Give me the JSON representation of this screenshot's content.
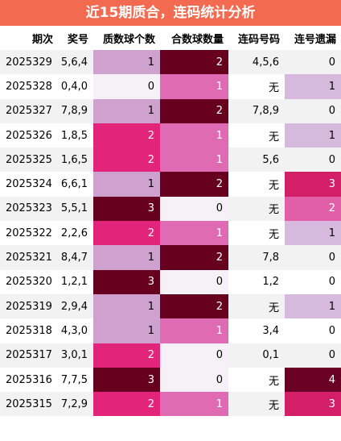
{
  "title": "近15期质合，连码统计分析",
  "headers": [
    "期次",
    "奖号",
    "质数球个数",
    "合数球数量",
    "连码号码",
    "连号遗漏"
  ],
  "rows": [
    {
      "issue": "2025329",
      "nums": "5,6,4",
      "prime": "1",
      "composite": "2",
      "consec": "4,5,6",
      "miss": "0"
    },
    {
      "issue": "2025328",
      "nums": "0,4,0",
      "prime": "0",
      "composite": "1",
      "consec": "无",
      "miss": "1"
    },
    {
      "issue": "2025327",
      "nums": "7,8,9",
      "prime": "1",
      "composite": "2",
      "consec": "7,8,9",
      "miss": "0"
    },
    {
      "issue": "2025326",
      "nums": "1,8,5",
      "prime": "2",
      "composite": "1",
      "consec": "无",
      "miss": "1"
    },
    {
      "issue": "2025325",
      "nums": "1,6,5",
      "prime": "2",
      "composite": "1",
      "consec": "5,6",
      "miss": "0"
    },
    {
      "issue": "2025324",
      "nums": "6,6,1",
      "prime": "1",
      "composite": "2",
      "consec": "无",
      "miss": "3"
    },
    {
      "issue": "2025323",
      "nums": "5,5,1",
      "prime": "3",
      "composite": "0",
      "consec": "无",
      "miss": "2"
    },
    {
      "issue": "2025322",
      "nums": "2,2,6",
      "prime": "2",
      "composite": "1",
      "consec": "无",
      "miss": "1"
    },
    {
      "issue": "2025321",
      "nums": "8,4,7",
      "prime": "1",
      "composite": "2",
      "consec": "7,8",
      "miss": "0"
    },
    {
      "issue": "2025320",
      "nums": "1,2,1",
      "prime": "3",
      "composite": "0",
      "consec": "1,2",
      "miss": "0"
    },
    {
      "issue": "2025319",
      "nums": "2,9,4",
      "prime": "1",
      "composite": "2",
      "consec": "无",
      "miss": "1"
    },
    {
      "issue": "2025318",
      "nums": "4,3,0",
      "prime": "1",
      "composite": "1",
      "consec": "3,4",
      "miss": "0"
    },
    {
      "issue": "2025317",
      "nums": "3,0,1",
      "prime": "2",
      "composite": "0",
      "consec": "0,1",
      "miss": "0"
    },
    {
      "issue": "2025316",
      "nums": "7,7,5",
      "prime": "3",
      "composite": "0",
      "consec": "无",
      "miss": "4"
    },
    {
      "issue": "2025315",
      "nums": "7,2,9",
      "prime": "2",
      "composite": "1",
      "consec": "无",
      "miss": "3"
    }
  ],
  "colors": {
    "title_bg": "#f26a4f",
    "prime": {
      "0": "#f5f1f6",
      "1": "#cfa1cf",
      "2": "#e2247a",
      "3": "#67001f"
    },
    "composite": {
      "0": "#f5f1f6",
      "1": "#df6bb4",
      "2": "#67001f"
    },
    "miss": {
      "1": "#d6b9dc",
      "2": "#e05fa7",
      "3": "#d31f68",
      "4": "#6a0024"
    }
  }
}
